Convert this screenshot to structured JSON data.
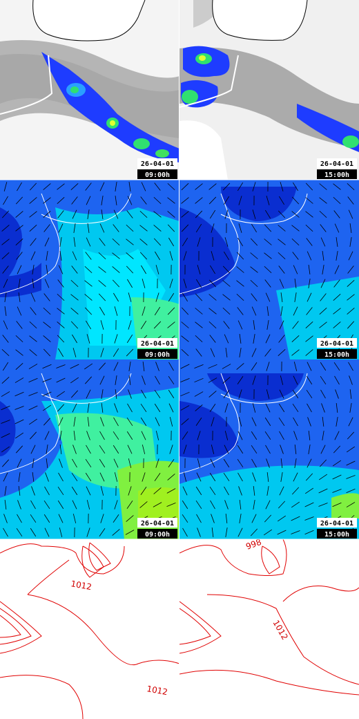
{
  "panels": [
    {
      "date": "26-04-01",
      "time": "09:00h"
    },
    {
      "date": "26-04-01",
      "time": "15:00h"
    },
    {
      "date": "26-04-01",
      "time": "09:00h"
    },
    {
      "date": "26-04-01",
      "time": "15:00h"
    },
    {
      "date": "26-04-01",
      "time": "09:00h"
    },
    {
      "date": "26-04-01",
      "time": "15:00h"
    },
    {
      "contour_labels": [
        "1012",
        "1012"
      ]
    },
    {
      "contour_labels": [
        "1012",
        "998"
      ]
    }
  ]
}
